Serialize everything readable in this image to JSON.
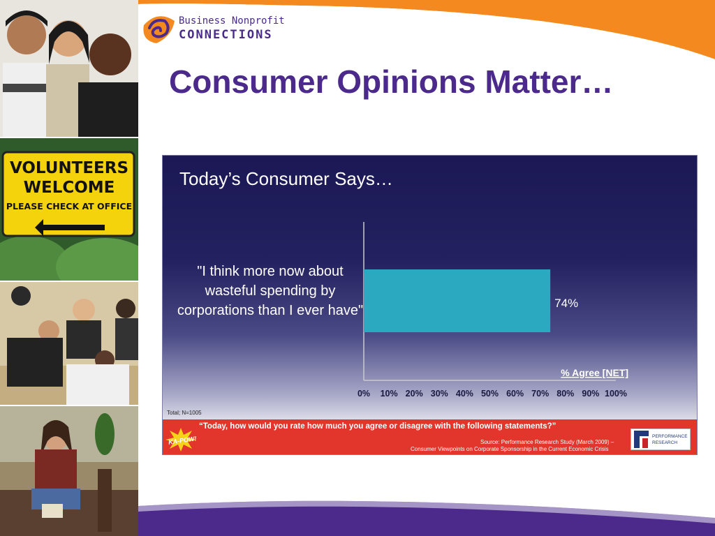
{
  "slide": {
    "title": "Consumer Opinions Matter…",
    "logo": {
      "line1": "Business Nonprofit",
      "line2": "CONNECTIONS"
    }
  },
  "photos": {
    "sign_line1": "VOLUNTEERS",
    "sign_line2": "WELCOME",
    "sign_line3": "PLEASE CHECK AT OFFICE"
  },
  "colors": {
    "accent_orange": "#f48a1f",
    "accent_purple": "#4b2a8c",
    "bar": "#2aa9c0",
    "band_red": "#e2352b"
  },
  "chart_data": {
    "type": "bar",
    "orientation": "horizontal",
    "title": "Today’s Consumer Says…",
    "categories": [
      "\"I think more now about wasteful spending by corporations than I ever have\""
    ],
    "series": [
      {
        "name": "% Agree [NET]",
        "values": [
          74
        ]
      }
    ],
    "data_labels": [
      "74%"
    ],
    "xlim": [
      0,
      100
    ],
    "x_ticks": [
      "0%",
      "10%",
      "20%",
      "30%",
      "40%",
      "50%",
      "60%",
      "70%",
      "80%",
      "90%",
      "100%"
    ],
    "legend": "bottom-right",
    "grid": false
  },
  "footnote": {
    "total": "Total; N=1005",
    "question": "“Today, how would you rate how much you agree or disagree with the following statements?”",
    "source_line1": "Source: Performance Research Study (March 2009) –",
    "source_line2": "Consumer Viewpoints on Corporate Sponsorship in the Current Economic Crisis",
    "badge": "KA-POW!",
    "pr_line1": "PERFORMANCE",
    "pr_line2": "RESEARCH"
  }
}
